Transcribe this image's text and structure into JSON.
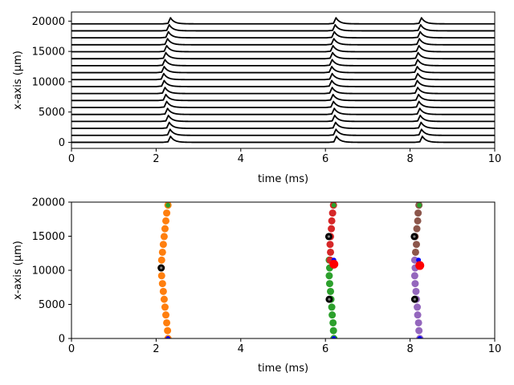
{
  "chart_data": [
    {
      "type": "line",
      "title": "",
      "xlabel": "time (ms)",
      "ylabel": "x-axis (μm)",
      "xlim": [
        0,
        10
      ],
      "ylim": [
        -1000,
        21500
      ],
      "xticks": [
        0,
        2,
        4,
        6,
        8,
        10
      ],
      "yticks": [
        0,
        5000,
        10000,
        15000,
        20000
      ],
      "grid": false,
      "legend": "none",
      "line_color": "#000000",
      "trace_offsets": [
        0,
        1150,
        2300,
        3450,
        4600,
        5750,
        6900,
        8050,
        9200,
        10350,
        11500,
        12650,
        13800,
        14950,
        16100,
        17250,
        18400,
        19550
      ],
      "trace_amplitude": 1000,
      "spike_times": [
        [
          2.28,
          6.2,
          8.23
        ],
        [
          2.27,
          6.19,
          8.21
        ],
        [
          2.25,
          6.18,
          8.2
        ],
        [
          2.23,
          6.16,
          8.18
        ],
        [
          2.21,
          6.15,
          8.17
        ],
        [
          2.19,
          6.13,
          8.15
        ],
        [
          2.17,
          6.12,
          8.14
        ],
        [
          2.15,
          6.1,
          8.12
        ],
        [
          2.13,
          6.09,
          8.11
        ],
        [
          2.12,
          6.1,
          8.12
        ],
        [
          2.13,
          6.09,
          8.11
        ],
        [
          2.15,
          6.1,
          8.12
        ],
        [
          2.17,
          6.11,
          8.13
        ],
        [
          2.19,
          6.12,
          8.15
        ],
        [
          2.21,
          6.14,
          8.16
        ],
        [
          2.23,
          6.15,
          8.18
        ],
        [
          2.25,
          6.17,
          8.19
        ],
        [
          2.28,
          6.19,
          8.21
        ]
      ]
    },
    {
      "type": "scatter",
      "title": "",
      "xlabel": "time (ms)",
      "ylabel": "x-axis (μm)",
      "xlim": [
        0,
        10
      ],
      "ylim": [
        0,
        20000
      ],
      "xticks": [
        0,
        2,
        4,
        6,
        8,
        10
      ],
      "yticks": [
        0,
        5000,
        10000,
        15000,
        20000
      ],
      "grid": false,
      "legend": "none",
      "y_positions": [
        0,
        1150,
        2300,
        3450,
        4600,
        5750,
        6900,
        8050,
        9200,
        10350,
        11500,
        12650,
        13800,
        14950,
        16100,
        17250,
        18400,
        19550
      ],
      "series": [
        {
          "color": "#ff7f0e",
          "points": [
            [
              2.28,
              0
            ],
            [
              2.27,
              1150
            ],
            [
              2.25,
              2300
            ],
            [
              2.23,
              3450
            ],
            [
              2.21,
              4600
            ],
            [
              2.19,
              5750
            ],
            [
              2.17,
              6900
            ],
            [
              2.15,
              8050
            ],
            [
              2.13,
              9200
            ],
            [
              2.12,
              10350
            ],
            [
              2.13,
              11500
            ],
            [
              2.15,
              12650
            ],
            [
              2.17,
              13800
            ],
            [
              2.19,
              14950
            ],
            [
              2.21,
              16100
            ],
            [
              2.23,
              17250
            ],
            [
              2.25,
              18400
            ],
            [
              2.28,
              19550
            ]
          ]
        },
        {
          "color": "#2ca02c",
          "points": [
            [
              6.2,
              0
            ],
            [
              6.19,
              1150
            ],
            [
              6.18,
              2300
            ],
            [
              6.16,
              3450
            ],
            [
              6.15,
              4600
            ],
            [
              6.13,
              5750
            ],
            [
              6.12,
              6900
            ],
            [
              6.1,
              8050
            ],
            [
              6.09,
              9200
            ],
            [
              6.1,
              10350
            ],
            [
              6.09,
              11500
            ]
          ]
        },
        {
          "color": "#d62728",
          "points": [
            [
              6.11,
              11500
            ],
            [
              6.12,
              12650
            ],
            [
              6.11,
              13800
            ],
            [
              6.12,
              14950
            ],
            [
              6.14,
              16100
            ],
            [
              6.15,
              17250
            ],
            [
              6.17,
              18400
            ],
            [
              6.19,
              19550
            ]
          ]
        },
        {
          "color": "#9467bd",
          "points": [
            [
              8.23,
              0
            ],
            [
              8.21,
              1150
            ],
            [
              8.2,
              2300
            ],
            [
              8.18,
              3450
            ],
            [
              8.17,
              4600
            ],
            [
              8.15,
              5750
            ],
            [
              8.14,
              6900
            ],
            [
              8.12,
              8050
            ],
            [
              8.11,
              9200
            ],
            [
              8.12,
              10350
            ],
            [
              8.11,
              11500
            ]
          ]
        },
        {
          "color": "#8c564b",
          "points": [
            [
              8.13,
              12650
            ],
            [
              8.15,
              13800
            ],
            [
              8.12,
              14950
            ],
            [
              8.16,
              16100
            ],
            [
              8.18,
              17250
            ],
            [
              8.19,
              18400
            ],
            [
              8.21,
              19550
            ]
          ]
        }
      ],
      "markers": [
        {
          "color": "#000000",
          "kind": "initiation",
          "points": [
            [
              2.12,
              10350
            ],
            [
              6.09,
              5750
            ],
            [
              6.08,
              14950
            ],
            [
              8.11,
              5750
            ],
            [
              8.1,
              14950
            ]
          ]
        },
        {
          "color": "#0000ff",
          "kind": "collision",
          "points": [
            [
              2.28,
              0
            ],
            [
              6.2,
              0
            ],
            [
              8.23,
              0
            ],
            [
              6.2,
              11500
            ],
            [
              8.2,
              11500
            ]
          ]
        },
        {
          "color": "#ff0000",
          "kind": "collision",
          "points": [
            [
              6.2,
              10900
            ],
            [
              8.23,
              10700
            ]
          ]
        },
        {
          "color": "#2ca02c",
          "kind": "end",
          "points": [
            [
              2.28,
              19550
            ],
            [
              6.2,
              19550
            ],
            [
              8.22,
              19550
            ]
          ]
        }
      ]
    }
  ]
}
